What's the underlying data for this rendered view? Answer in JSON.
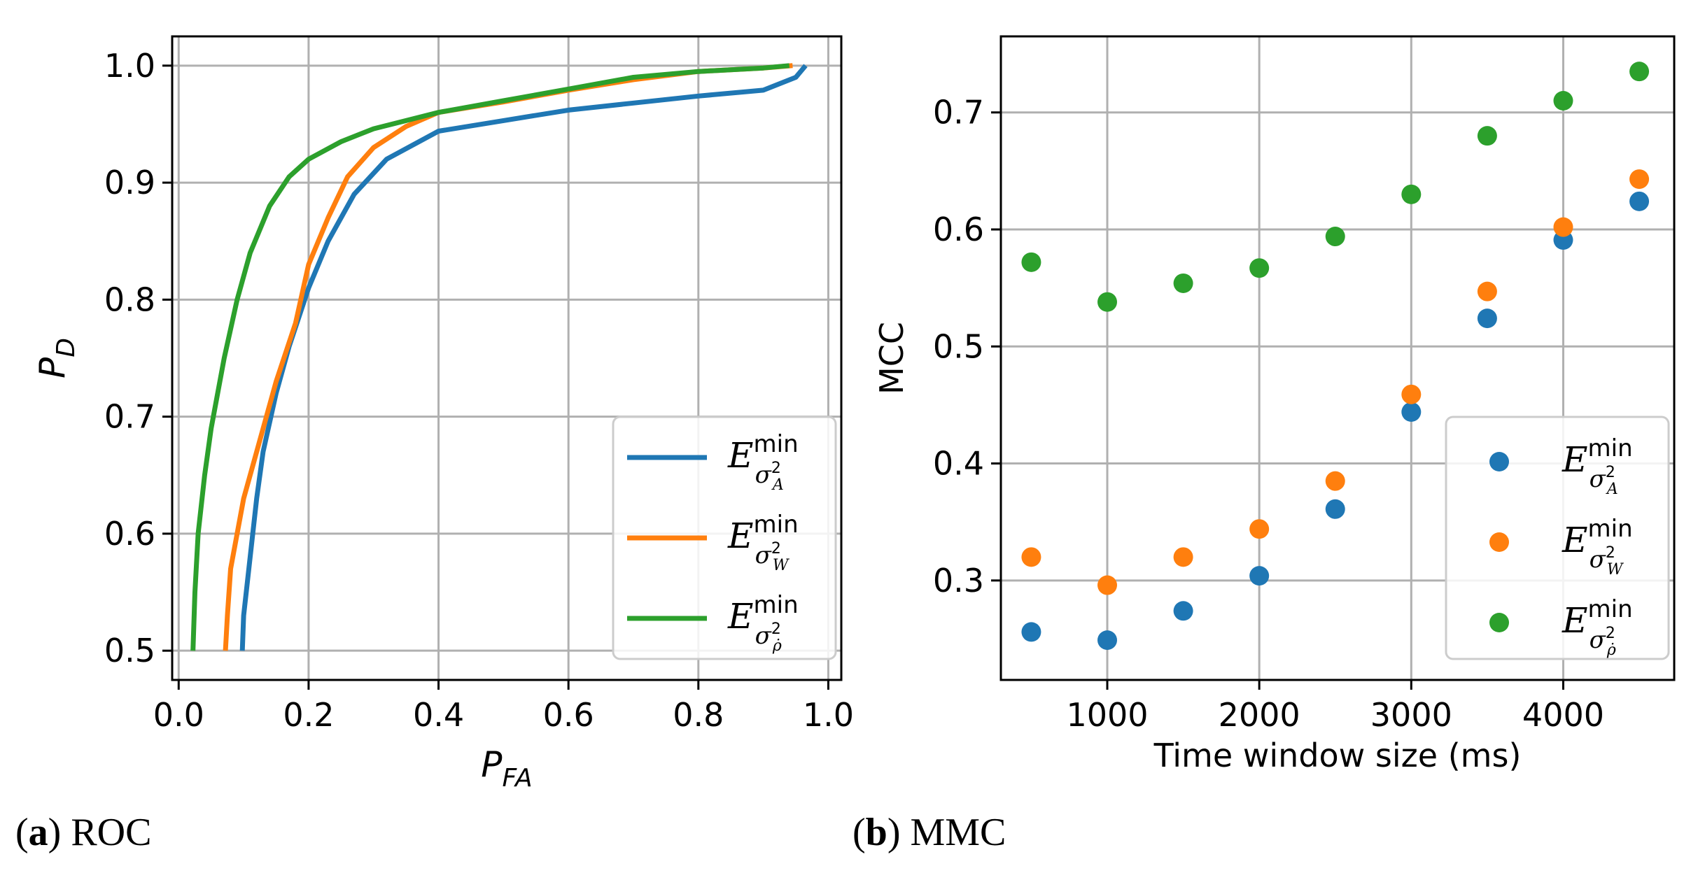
{
  "chart_data": [
    {
      "panel": "a",
      "type": "line",
      "title": "",
      "xlabel_base": "P",
      "xlabel_sub": "FA",
      "ylabel_base": "P",
      "ylabel_sub": "D",
      "xlim": [
        -0.01,
        1.02
      ],
      "ylim": [
        0.475,
        1.025
      ],
      "xticks": [
        0.0,
        0.2,
        0.4,
        0.6,
        0.8,
        1.0
      ],
      "xtick_labels": [
        "0.0",
        "0.2",
        "0.4",
        "0.6",
        "0.8",
        "1.0"
      ],
      "yticks": [
        0.5,
        0.6,
        0.7,
        0.8,
        0.9,
        1.0
      ],
      "ytick_labels": [
        "0.5",
        "0.6",
        "0.7",
        "0.8",
        "0.9",
        "1.0"
      ],
      "grid": true,
      "legend_position": "lower-right",
      "series": [
        {
          "name": "E min σ²_A",
          "legend_base": "E",
          "legend_sup": "min",
          "legend_sub": "σ",
          "legend_sub_sup": "2",
          "legend_sub_sub": "A",
          "color": "#1f77b4",
          "x": [
            0.098,
            0.1,
            0.11,
            0.12,
            0.13,
            0.15,
            0.17,
            0.2,
            0.23,
            0.27,
            0.32,
            0.4,
            0.5,
            0.6,
            0.7,
            0.8,
            0.9,
            0.95,
            0.965
          ],
          "y": [
            0.5,
            0.53,
            0.58,
            0.63,
            0.67,
            0.72,
            0.76,
            0.81,
            0.85,
            0.89,
            0.92,
            0.944,
            0.953,
            0.962,
            0.968,
            0.974,
            0.979,
            0.99,
            1.0
          ]
        },
        {
          "name": "E min σ²_W",
          "legend_base": "E",
          "legend_sup": "min",
          "legend_sub": "σ",
          "legend_sub_sup": "2",
          "legend_sub_sub": "W",
          "color": "#ff7f0e",
          "x": [
            0.072,
            0.075,
            0.08,
            0.09,
            0.1,
            0.12,
            0.15,
            0.18,
            0.2,
            0.23,
            0.26,
            0.3,
            0.35,
            0.4,
            0.5,
            0.6,
            0.7,
            0.8,
            0.9,
            0.945
          ],
          "y": [
            0.5,
            0.53,
            0.57,
            0.6,
            0.63,
            0.67,
            0.73,
            0.78,
            0.83,
            0.87,
            0.905,
            0.93,
            0.948,
            0.96,
            0.969,
            0.979,
            0.988,
            0.995,
            0.998,
            1.0
          ]
        },
        {
          "name": "E min σ²_ρ̇",
          "legend_base": "E",
          "legend_sup": "min",
          "legend_sub": "σ",
          "legend_sub_sup": "2",
          "legend_sub_sub": "ρ̇",
          "color": "#2ca02c",
          "x": [
            0.022,
            0.025,
            0.03,
            0.04,
            0.05,
            0.07,
            0.09,
            0.11,
            0.14,
            0.17,
            0.2,
            0.25,
            0.3,
            0.4,
            0.5,
            0.6,
            0.7,
            0.8,
            0.9,
            0.94
          ],
          "y": [
            0.5,
            0.55,
            0.6,
            0.65,
            0.69,
            0.75,
            0.8,
            0.84,
            0.88,
            0.905,
            0.92,
            0.935,
            0.946,
            0.96,
            0.97,
            0.98,
            0.99,
            0.995,
            0.998,
            1.0
          ]
        }
      ]
    },
    {
      "panel": "b",
      "type": "scatter",
      "title": "",
      "xlabel": "Time window size (ms)",
      "ylabel": "MCC",
      "xlim": [
        300,
        4730
      ],
      "ylim": [
        0.215,
        0.765
      ],
      "xticks": [
        1000,
        2000,
        3000,
        4000
      ],
      "xtick_labels": [
        "1000",
        "2000",
        "3000",
        "4000"
      ],
      "yticks": [
        0.3,
        0.4,
        0.5,
        0.6,
        0.7
      ],
      "ytick_labels": [
        "0.3",
        "0.4",
        "0.5",
        "0.6",
        "0.7"
      ],
      "grid": true,
      "legend_position": "lower-right",
      "x": [
        500,
        1000,
        1500,
        2000,
        2500,
        3000,
        3500,
        4000,
        4500
      ],
      "series": [
        {
          "name": "E min σ²_A",
          "legend_base": "E",
          "legend_sup": "min",
          "legend_sub": "σ",
          "legend_sub_sup": "2",
          "legend_sub_sub": "A",
          "color": "#1f77b4",
          "values": [
            0.256,
            0.249,
            0.274,
            0.304,
            0.361,
            0.444,
            0.524,
            0.591,
            0.624
          ]
        },
        {
          "name": "E min σ²_W",
          "legend_base": "E",
          "legend_sup": "min",
          "legend_sub": "σ",
          "legend_sub_sup": "2",
          "legend_sub_sub": "W",
          "color": "#ff7f0e",
          "values": [
            0.32,
            0.296,
            0.32,
            0.344,
            0.385,
            0.459,
            0.547,
            0.602,
            0.643
          ]
        },
        {
          "name": "E min σ²_ρ̇",
          "legend_base": "E",
          "legend_sup": "min",
          "legend_sub": "σ",
          "legend_sub_sup": "2",
          "legend_sub_sub": "ρ̇",
          "color": "#2ca02c",
          "values": [
            0.572,
            0.538,
            0.554,
            0.567,
            0.594,
            0.63,
            0.68,
            0.71,
            0.735
          ]
        }
      ]
    }
  ],
  "captions": {
    "a": {
      "label": "a",
      "text": "ROC"
    },
    "b": {
      "label": "b",
      "text": "MMC"
    }
  }
}
